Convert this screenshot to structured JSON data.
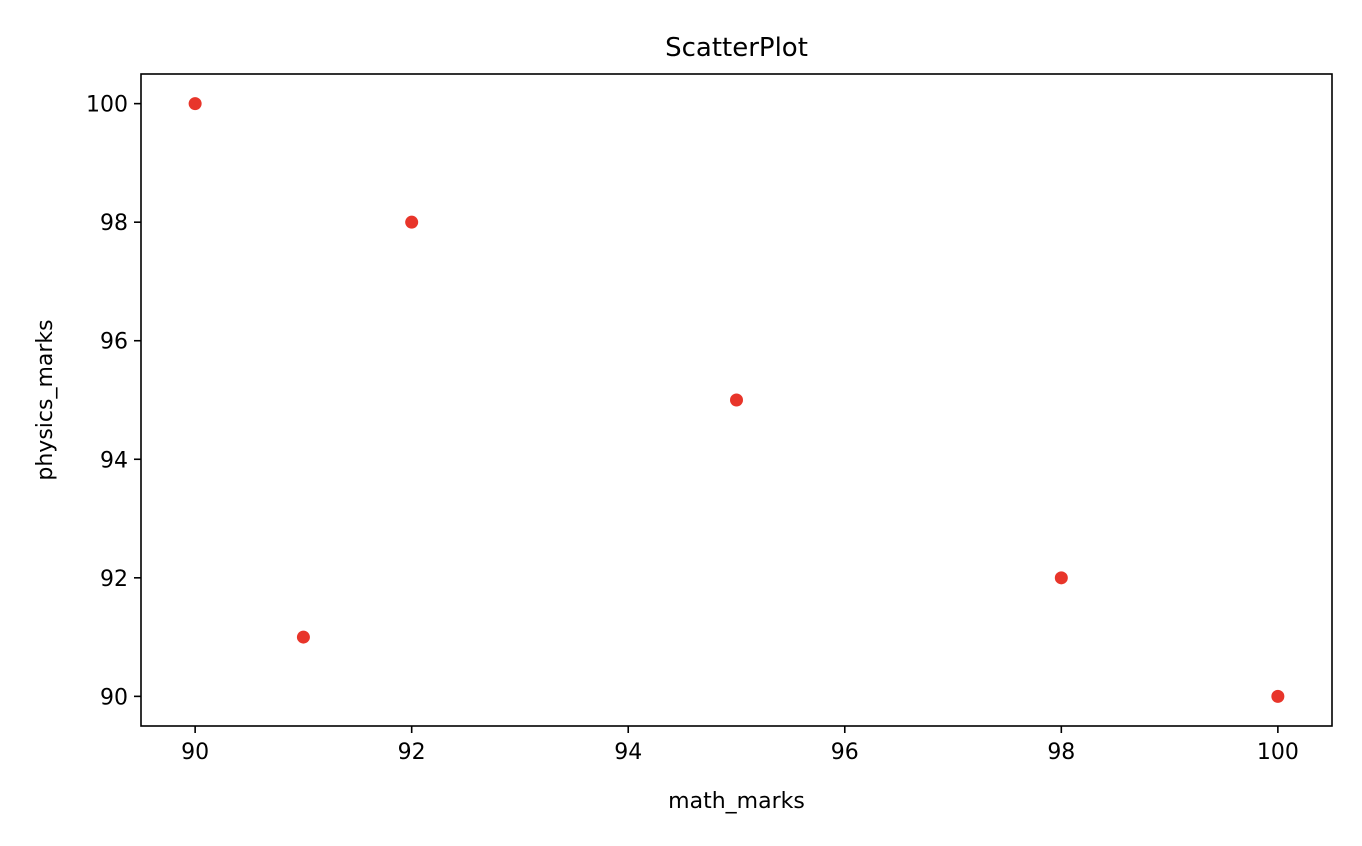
{
  "chart_data": {
    "type": "scatter",
    "title": "ScatterPlot",
    "xlabel": "math_marks",
    "ylabel": "physics_marks",
    "xlim": [
      89.5,
      100.5
    ],
    "ylim": [
      89.5,
      100.5
    ],
    "x_ticks": [
      90,
      92,
      94,
      96,
      98,
      100
    ],
    "y_ticks": [
      90,
      92,
      94,
      96,
      98,
      100
    ],
    "x_tick_labels": [
      "90",
      "92",
      "94",
      "96",
      "98",
      "100"
    ],
    "y_tick_labels": [
      "90",
      "92",
      "94",
      "96",
      "98",
      "100"
    ],
    "grid": false,
    "series": [
      {
        "color": "#e8352a",
        "x": [
          90,
          92,
          95,
          91,
          98,
          100
        ],
        "y": [
          100,
          98,
          95,
          91,
          92,
          90
        ]
      }
    ]
  }
}
